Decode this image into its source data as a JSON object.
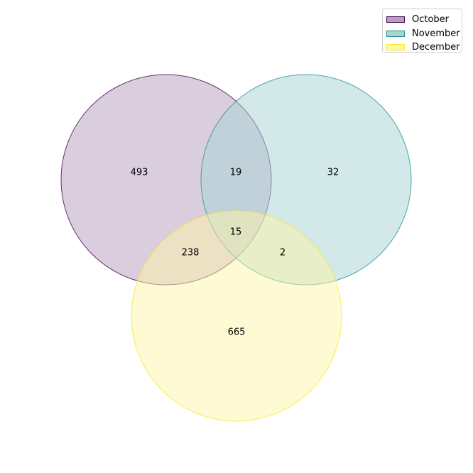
{
  "chart_data": {
    "type": "venn",
    "title": "",
    "sets": [
      {
        "name": "October",
        "fill": "#b59ebe",
        "edge": "#440154"
      },
      {
        "name": "November",
        "fill": "#a8d4d4",
        "edge": "#21918c"
      },
      {
        "name": "December",
        "fill": "#fdf5a8",
        "edge": "#fde725"
      }
    ],
    "regions": [
      {
        "id": "october-only",
        "sets": [
          "October"
        ],
        "value": "493"
      },
      {
        "id": "november-only",
        "sets": [
          "November"
        ],
        "value": "32"
      },
      {
        "id": "october-november",
        "sets": [
          "October",
          "November"
        ],
        "value": "19"
      },
      {
        "id": "all-three",
        "sets": [
          "October",
          "November",
          "December"
        ],
        "value": "15"
      },
      {
        "id": "october-december",
        "sets": [
          "October",
          "December"
        ],
        "value": "238"
      },
      {
        "id": "november-december",
        "sets": [
          "November",
          "December"
        ],
        "value": "2"
      },
      {
        "id": "december-only",
        "sets": [
          "December"
        ],
        "value": "665"
      }
    ],
    "legend_position": "top-right"
  }
}
